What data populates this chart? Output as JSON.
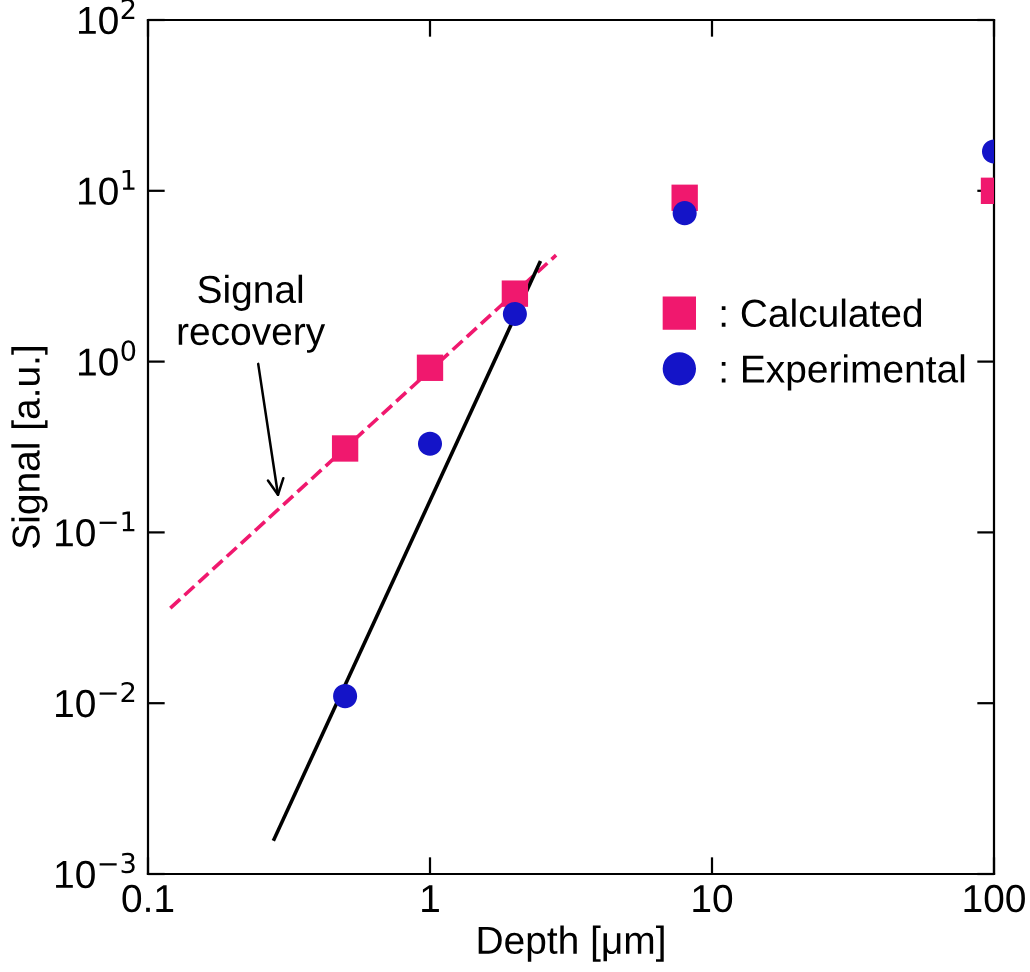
{
  "chart_data": {
    "type": "scatter",
    "xlabel": "Depth [μm]",
    "ylabel": "Signal [a.u.]",
    "log": "xy",
    "xlim": [
      0.1,
      100
    ],
    "ylim": [
      0.001,
      100
    ],
    "xticks": [
      0.1,
      1,
      10,
      100
    ],
    "yticks": [
      {
        "value": 0.001,
        "label": "10$^{−3}$"
      },
      {
        "value": 0.01,
        "label": "10$^{−2}$"
      },
      {
        "value": 0.1,
        "label": "10$^{−1}$"
      },
      {
        "value": 1,
        "label": "10$^{0}$"
      },
      {
        "value": 10,
        "label": "10$^{1}$"
      },
      {
        "value": 100,
        "label": "10$^{2}$"
      }
    ],
    "grid": false,
    "legend": "right",
    "series": [
      {
        "name": ": Calculated",
        "marker": "square",
        "color": "#f0186e",
        "x": [
          0.5,
          1,
          2,
          8,
          100
        ],
        "values": [
          0.31,
          0.92,
          2.5,
          9.1,
          10
        ]
      },
      {
        "name": ": Experimental",
        "marker": "circle",
        "color": "#1414c8",
        "x": [
          0.5,
          1,
          2,
          8,
          100
        ],
        "values": [
          0.011,
          0.33,
          1.9,
          7.4,
          17
        ]
      },
      {
        "type": "line",
        "line_style": "dashed",
        "color": "#f0186e",
        "x": [
          0.12,
          2.8
        ],
        "values": [
          0.036,
          4.2
        ]
      },
      {
        "type": "line",
        "line_style": "solid",
        "color": "#000000",
        "x": [
          0.28,
          2.45
        ],
        "values": [
          0.0016,
          3.8
        ]
      }
    ],
    "annotations": [
      {
        "text": "Signal\nrecovery",
        "x": 0.29,
        "y": 0.16
      }
    ]
  }
}
